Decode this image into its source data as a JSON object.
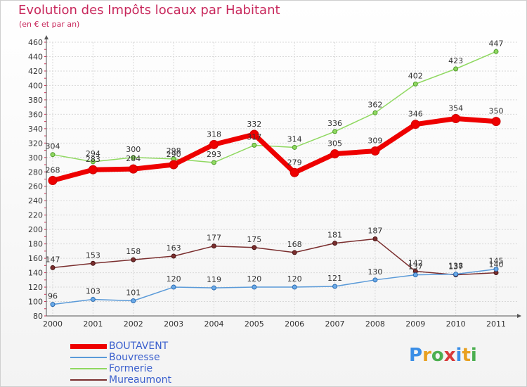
{
  "title": "Evolution des Impôts locaux par Habitant",
  "subtitle": "(en € et par an)",
  "logo_text": "Proxiti",
  "chart_data": {
    "type": "line",
    "title": "Evolution des Impôts locaux par Habitant",
    "ylabel": "(en € et par an)",
    "xlabel": "",
    "categories": [
      "2000",
      "2001",
      "2002",
      "2003",
      "2004",
      "2005",
      "2006",
      "2007",
      "2008",
      "2009",
      "2010",
      "2011"
    ],
    "ylim": [
      80,
      460
    ],
    "yticks": [
      80,
      100,
      120,
      140,
      160,
      180,
      200,
      220,
      240,
      260,
      280,
      300,
      320,
      340,
      360,
      380,
      400,
      420,
      440,
      460
    ],
    "grid": true,
    "legend_position": "bottom-left",
    "series": [
      {
        "name": "BOUTAVENT",
        "color": "#ee0000",
        "values": [
          268,
          283,
          284,
          290,
          318,
          332,
          279,
          305,
          309,
          346,
          354,
          350
        ]
      },
      {
        "name": "Bouvresse",
        "color": "#5a9ad8",
        "values": [
          96,
          103,
          101,
          120,
          119,
          120,
          120,
          121,
          130,
          137,
          138,
          145
        ]
      },
      {
        "name": "Formerie",
        "color": "#8fd860",
        "values": [
          304,
          294,
          300,
          298,
          293,
          317,
          314,
          336,
          362,
          402,
          423,
          447
        ]
      },
      {
        "name": "Mureaumont",
        "color": "#7a2e2e",
        "values": [
          147,
          153,
          158,
          163,
          177,
          175,
          168,
          181,
          187,
          142,
          137,
          140
        ]
      }
    ]
  }
}
